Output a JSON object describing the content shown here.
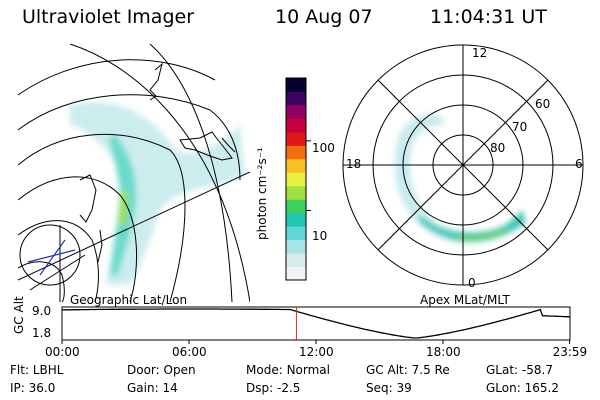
{
  "header": {
    "instrument": "Ultraviolet Imager",
    "date": "10 Aug 07",
    "time": "11:04:31 UT"
  },
  "colorbar": {
    "unit_label": "photon cm⁻²s⁻¹",
    "ticks": [
      {
        "value": 100,
        "label": "100"
      },
      {
        "value": 10,
        "label": "10"
      }
    ],
    "colors": [
      "#f2f2f2",
      "#d8ecec",
      "#a8e4e8",
      "#60d8d8",
      "#20c8b0",
      "#40d060",
      "#a0e040",
      "#e8f040",
      "#f8c020",
      "#f07010",
      "#e01818",
      "#c80040",
      "#900060",
      "#400060",
      "#080030"
    ]
  },
  "panels": {
    "geo_label": "Geographic Lat/Lon",
    "polar_label": "Apex MLat/MLT",
    "polar_mlt_labels": {
      "top": "12",
      "left": "18",
      "right": "6",
      "bottom": "0"
    },
    "polar_lat_labels": [
      "60",
      "70",
      "80"
    ]
  },
  "timeline": {
    "ylabel": "GC Alt",
    "ymax_label": "9.0",
    "ymin_label": "1.8",
    "xticks": [
      "00:00",
      "06:00",
      "12:00",
      "18:00",
      "23:59"
    ],
    "current_time_hours": 11.075,
    "marker_color": "#e02020"
  },
  "info": {
    "row1": [
      {
        "label": "Flt:",
        "value": "LBHL"
      },
      {
        "label": "Door:",
        "value": "Open"
      },
      {
        "label": "Mode:",
        "value": "Normal"
      },
      {
        "label": "GC Alt:",
        "value": "7.5 Re"
      },
      {
        "label": "GLat:",
        "value": "-58.7"
      }
    ],
    "row2": [
      {
        "label": "IP:",
        "value": "36.0"
      },
      {
        "label": "Gain:",
        "value": "14"
      },
      {
        "label": "Dsp:",
        "value": "-2.5"
      },
      {
        "label": "Seq:",
        "value": "39"
      },
      {
        "label": "GLon:",
        "value": "165.2"
      }
    ]
  }
}
